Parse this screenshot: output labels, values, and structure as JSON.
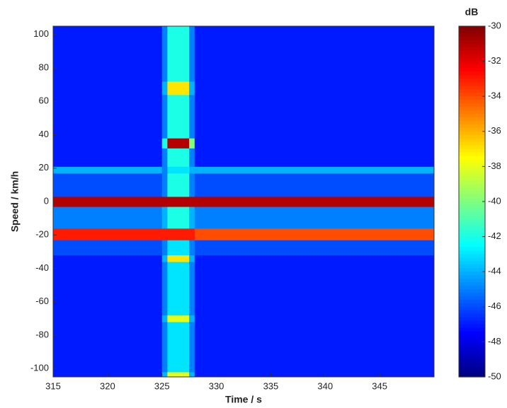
{
  "chart_data": {
    "type": "heatmap",
    "x_label": "Time / s",
    "y_label": "Speed / km/h",
    "colorbar_label": "dB",
    "xbins": [
      315,
      325,
      325.5,
      327.5,
      328,
      350
    ],
    "ybins": [
      -105,
      -102,
      -72,
      -68,
      -36,
      -32,
      -23,
      -16,
      -3,
      3,
      17,
      21,
      32,
      38,
      64,
      72,
      105
    ],
    "z": [
      [
        -47,
        -44,
        -38,
        -44,
        -47
      ],
      [
        -47,
        -45,
        -43,
        -45,
        -47
      ],
      [
        -47,
        -44,
        -38,
        -44,
        -47
      ],
      [
        -47,
        -45,
        -43,
        -45,
        -47
      ],
      [
        -47,
        -44,
        -37,
        -44,
        -47
      ],
      [
        -46,
        -45,
        -43,
        -45,
        -46
      ],
      [
        -33,
        -33,
        -33,
        -33,
        -34
      ],
      [
        -45,
        -44,
        -42,
        -44,
        -45
      ],
      [
        -31,
        -31,
        -31,
        -31,
        -31
      ],
      [
        -46,
        -45,
        -42,
        -45,
        -46
      ],
      [
        -44,
        -45,
        -43,
        -44,
        -44
      ],
      [
        -47,
        -45,
        -42,
        -45,
        -47
      ],
      [
        -47,
        -42,
        -31,
        -40,
        -47
      ],
      [
        -47,
        -45,
        -42,
        -45,
        -47
      ],
      [
        -47,
        -44,
        -37,
        -44,
        -47
      ],
      [
        -47,
        -45,
        -42,
        -45,
        -47
      ]
    ],
    "colormap": "jet",
    "xlim": [
      315,
      350
    ],
    "xticks": [
      315,
      320,
      325,
      330,
      335,
      340,
      345
    ],
    "ylim": [
      -105,
      105
    ],
    "yticks": [
      -100,
      -80,
      -60,
      -40,
      -20,
      0,
      20,
      40,
      60,
      80,
      100
    ],
    "clim": [
      -50,
      -30
    ],
    "cticks": [
      -50,
      -48,
      -46,
      -44,
      -42,
      -40,
      -38,
      -36,
      -34,
      -32,
      -30
    ]
  }
}
